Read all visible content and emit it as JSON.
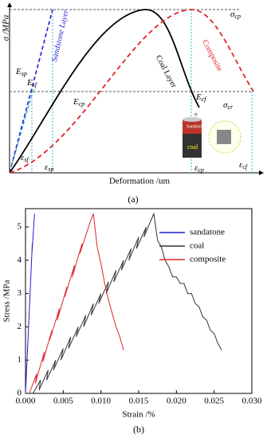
{
  "panel_a": {
    "y_label": "σ /MPa",
    "x_label": "Deformation /um",
    "caption": "(a)",
    "curve_labels": [
      "Sandstone Layer",
      "Coal Layer",
      "Composite"
    ],
    "symbols": [
      {
        "symbol": "E",
        "sub": "sp"
      },
      {
        "symbol": "E",
        "sub": "sf"
      },
      {
        "symbol": "E",
        "sub": "cp"
      },
      {
        "symbol": "E",
        "sub": "cf"
      },
      {
        "symbol": "σ",
        "sub": "cp"
      },
      {
        "symbol": "σ",
        "sub": "cr"
      },
      {
        "symbol": "ε",
        "sub": "sf"
      },
      {
        "symbol": "ε",
        "sub": "sp"
      },
      {
        "symbol": "ε",
        "sub": "cp"
      },
      {
        "symbol": "ε",
        "sub": "cf"
      }
    ],
    "inset": [
      "Sandstone",
      "coal",
      "σ"
    ]
  },
  "chart_data": {
    "type": "line",
    "caption": "(b)",
    "x_label": "Strain /%",
    "y_label": "Stress /MPa",
    "xlim": [
      0,
      0.03
    ],
    "xticks": [
      {
        "value": 0,
        "label": "0.000"
      },
      {
        "value": 0.005,
        "label": "0.005"
      },
      {
        "value": 0.01,
        "label": "0.010"
      },
      {
        "value": 0.015,
        "label": "0.015"
      },
      {
        "value": 0.02,
        "label": "0.020"
      },
      {
        "value": 0.025,
        "label": "0.025"
      },
      {
        "value": 0.03,
        "label": "0.030"
      }
    ],
    "ylim": [
      0,
      5.55
    ],
    "yticks": [
      0,
      1,
      2,
      3,
      4,
      5
    ],
    "legend": "upper right",
    "series": [
      {
        "name": "sandatone",
        "color": "#1f1fd6",
        "x": [
          0,
          0.0003,
          0.00025,
          0.0006,
          0.00055,
          0.0009,
          0.00085,
          0.0012
        ],
        "values": [
          0,
          1.5,
          1.2,
          3.0,
          2.7,
          4.5,
          4.2,
          5.4
        ]
      },
      {
        "name": "coal",
        "color": "#333333",
        "x": [
          0.001,
          0.002,
          0.0018,
          0.003,
          0.0028,
          0.004,
          0.0037,
          0.005,
          0.0047,
          0.006,
          0.0057,
          0.007,
          0.0067,
          0.008,
          0.0077,
          0.009,
          0.0087,
          0.01,
          0.0097,
          0.011,
          0.0107,
          0.012,
          0.0117,
          0.013,
          0.0127,
          0.014,
          0.0137,
          0.015,
          0.0147,
          0.016,
          0.0157,
          0.017,
          0.0175,
          0.018,
          0.0185,
          0.019,
          0.0195,
          0.02,
          0.0205,
          0.021,
          0.0215,
          0.022,
          0.0225,
          0.023,
          0.0235,
          0.024,
          0.0245,
          0.025,
          0.0255,
          0.026
        ],
        "values": [
          0,
          0.4,
          0.1,
          0.7,
          0.4,
          1.0,
          0.7,
          1.35,
          1.0,
          1.7,
          1.35,
          2.0,
          1.7,
          2.35,
          2.0,
          2.7,
          2.35,
          3.0,
          2.7,
          3.35,
          3.0,
          3.7,
          3.35,
          4.0,
          3.7,
          4.35,
          4.0,
          4.7,
          4.35,
          5.0,
          4.7,
          5.4,
          4.6,
          4.4,
          4.0,
          3.8,
          3.5,
          3.5,
          3.3,
          3.3,
          3.0,
          3.0,
          2.7,
          2.6,
          2.3,
          2.2,
          1.9,
          1.8,
          1.5,
          1.3
        ]
      },
      {
        "name": "composite",
        "color": "#e0262c",
        "x": [
          0.0005,
          0.0015,
          0.0013,
          0.0025,
          0.0023,
          0.0035,
          0.0032,
          0.0045,
          0.0042,
          0.0055,
          0.0052,
          0.0065,
          0.0062,
          0.0075,
          0.0072,
          0.0085,
          0.009,
          0.0095,
          0.01,
          0.0105,
          0.011,
          0.0115,
          0.012,
          0.0125,
          0.013
        ],
        "values": [
          0,
          0.6,
          0.3,
          1.25,
          0.95,
          1.9,
          1.6,
          2.55,
          2.2,
          3.2,
          2.9,
          3.85,
          3.5,
          4.5,
          4.2,
          5.1,
          5.4,
          4.4,
          3.9,
          3.3,
          2.8,
          2.4,
          2.0,
          1.7,
          1.3
        ]
      }
    ]
  }
}
